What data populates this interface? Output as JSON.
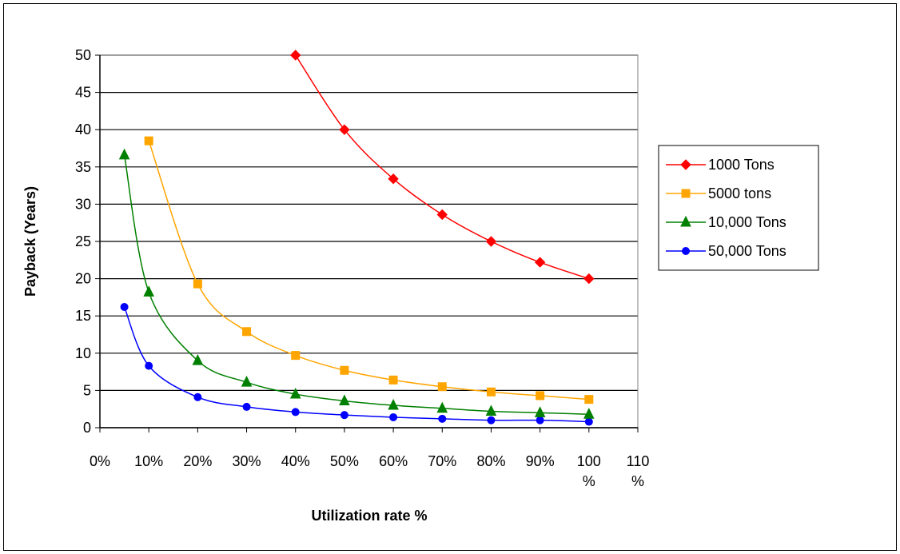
{
  "chart_data": {
    "type": "line",
    "xlabel": "Utilization rate %",
    "ylabel": "Payback (Years)",
    "xlim": [
      0,
      110
    ],
    "ylim": [
      0,
      50
    ],
    "xticks": [
      0,
      10,
      20,
      30,
      40,
      50,
      60,
      70,
      80,
      90,
      100,
      110
    ],
    "xtick_labels": [
      [
        "0%"
      ],
      [
        "10%"
      ],
      [
        "20%"
      ],
      [
        "30%"
      ],
      [
        "40%"
      ],
      [
        "50%"
      ],
      [
        "60%"
      ],
      [
        "70%"
      ],
      [
        "80%"
      ],
      [
        "90%"
      ],
      [
        "100",
        "%"
      ],
      [
        "110",
        "%"
      ]
    ],
    "yticks": [
      0,
      5,
      10,
      15,
      20,
      25,
      30,
      35,
      40,
      45,
      50
    ],
    "grid": "horizontal",
    "legend_position": "right",
    "series": [
      {
        "name": "1000 Tons",
        "color": "#ff0000",
        "marker": "diamond",
        "x": [
          40,
          50,
          60,
          70,
          80,
          90,
          100
        ],
        "y": [
          50,
          40,
          33.4,
          28.6,
          25,
          22.2,
          20
        ]
      },
      {
        "name": "5000 tons",
        "color": "#ffa500",
        "marker": "square",
        "x": [
          10,
          20,
          30,
          40,
          50,
          60,
          70,
          80,
          90,
          100
        ],
        "y": [
          38.5,
          19.3,
          12.9,
          9.7,
          7.7,
          6.4,
          5.5,
          4.8,
          4.3,
          3.8
        ]
      },
      {
        "name": "10,000 Tons",
        "color": "#008000",
        "marker": "triangle",
        "x": [
          5,
          10,
          20,
          30,
          40,
          50,
          60,
          70,
          80,
          90,
          100
        ],
        "y": [
          36.6,
          18.2,
          9,
          6.1,
          4.5,
          3.6,
          3,
          2.6,
          2.2,
          2,
          1.8
        ]
      },
      {
        "name": "50,000 Tons",
        "color": "#0000ff",
        "marker": "circle",
        "x": [
          5,
          10,
          20,
          30,
          40,
          50,
          60,
          70,
          80,
          90,
          100
        ],
        "y": [
          16.2,
          8.3,
          4.1,
          2.8,
          2.1,
          1.7,
          1.4,
          1.2,
          1,
          1,
          0.8
        ]
      }
    ]
  }
}
